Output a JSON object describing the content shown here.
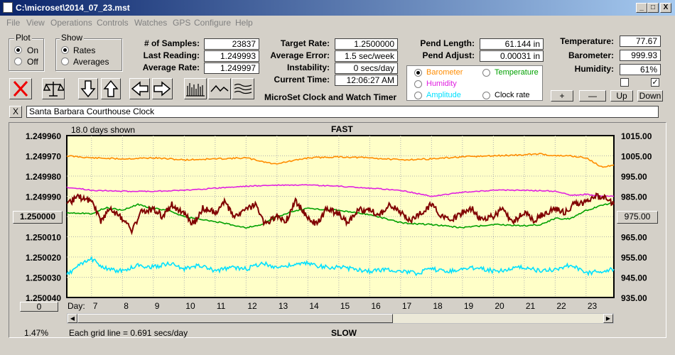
{
  "window": {
    "title": "C:\\microset\\2014_07_23.mst",
    "min_label": "_",
    "max_label": "□",
    "close_label": "X"
  },
  "menu": [
    "File",
    "View",
    "Operations",
    "Controls",
    "Watches",
    "GPS",
    "Configure",
    "Help"
  ],
  "plot": {
    "title": "Plot",
    "on": "On",
    "off": "Off"
  },
  "show": {
    "title": "Show",
    "rates": "Rates",
    "averages": "Averages"
  },
  "stats": {
    "samples_label": "# of Samples:",
    "samples": "23837",
    "last_label": "Last Reading:",
    "last": "1.249993",
    "avg_label": "Average Rate:",
    "avg": "1.249997",
    "target_label": "Target Rate:",
    "target": "1.2500000",
    "avgerr_label": "Average Error:",
    "avgerr": "1.5 sec/week",
    "instab_label": "Instability:",
    "instab": "0 secs/day",
    "time_label": "Current Time:",
    "time": "12:06:27 AM",
    "app_name": "MicroSet Clock and Watch Timer",
    "pend_len_label": "Pend Length:",
    "pend_len": "61.144 in",
    "pend_adj_label": "Pend Adjust:",
    "pend_adj": "0.00031 in",
    "temp_label": "Temperature:",
    "temp": "77.67",
    "baro_label": "Barometer:",
    "baro": "999.93",
    "hum_label": "Humidity:",
    "hum": "61%"
  },
  "sensors": {
    "barometer": "Barometer",
    "temperature": "Temperature",
    "humidity": "Humidity",
    "amplitude": "Amplitude",
    "clock_rate": "Clock rate"
  },
  "adjust": {
    "plus": "+",
    "minus": "—",
    "up": "Up",
    "down": "Down"
  },
  "colors": {
    "barometer": "#ff8c00",
    "temperature": "#00a000",
    "humidity": "#e020e0",
    "amplitude": "#00e0ff",
    "rate": "#800000",
    "chart_bg": "#ffffc8"
  },
  "watch": {
    "close": "X",
    "name": "Santa Barbara Courthouse Clock"
  },
  "chart_data": {
    "type": "line",
    "days_shown": "18.0 days shown",
    "top_label": "FAST",
    "bottom_label": "SLOW",
    "left_ticks": [
      "1.249960",
      "1.249970",
      "1.249980",
      "1.249990",
      "1.250000",
      "1.250010",
      "1.250020",
      "1.250030",
      "1.250040"
    ],
    "right_ticks": [
      "1015.00",
      "1005.00",
      "995.00",
      "985.00",
      "975.00",
      "965.00",
      "955.00",
      "945.00",
      "935.00"
    ],
    "center_left": "1.250000",
    "center_right": "975.00",
    "zero_button": "0",
    "day_label": "Day:",
    "day_ticks": [
      "7",
      "8",
      "9",
      "10",
      "11",
      "12",
      "13",
      "14",
      "15",
      "16",
      "17",
      "18",
      "19",
      "20",
      "21",
      "22",
      "23"
    ],
    "percent": "1.47%",
    "grid_note": "Each grid line = 0.691 secs/day",
    "x_range": [
      6.2,
      23.9
    ],
    "right_range": [
      935,
      1015
    ],
    "series": [
      {
        "key": "barometer",
        "x": [
          6.2,
          7,
          8,
          9,
          10,
          11,
          12,
          12.9,
          13.5,
          14,
          15,
          16,
          17,
          18,
          19,
          20,
          21,
          21.5,
          22,
          22.5,
          23,
          23.5,
          23.9
        ],
        "values": [
          1005,
          1004,
          1003.5,
          1004,
          1003,
          1003.5,
          1004,
          1001,
          1002.5,
          1004,
          1004.5,
          1004,
          1003,
          1003.5,
          1004.5,
          1005,
          1005.5,
          1006,
          1005,
          1005,
          1004,
          999.5,
          1000.5
        ]
      },
      {
        "key": "humidity",
        "x": [
          6.2,
          7,
          8,
          9,
          10,
          11,
          12,
          13,
          14,
          15,
          16,
          17,
          18,
          19,
          20,
          21,
          22,
          22.5,
          23,
          23.5,
          23.9
        ],
        "values": [
          989.5,
          988,
          987.5,
          987.5,
          988,
          989,
          990,
          990.5,
          990.5,
          990,
          989,
          988,
          985,
          987,
          988,
          988,
          987.5,
          985.5,
          986,
          985,
          985
        ]
      },
      {
        "key": "temperature",
        "x": [
          6.2,
          7,
          7.5,
          8,
          8.5,
          9,
          9.5,
          10,
          10.5,
          11,
          11.5,
          12,
          12.5,
          13,
          13.5,
          14,
          15,
          16,
          17,
          18,
          19,
          20,
          21,
          21.5,
          22,
          22.5,
          23,
          23.5,
          23.9
        ],
        "values": [
          977,
          976.5,
          979.5,
          978,
          981,
          979,
          978,
          975,
          973.5,
          972.5,
          971,
          969.5,
          971,
          975,
          977.5,
          979,
          978,
          976,
          972,
          971,
          969.5,
          971,
          970.5,
          971,
          974,
          974,
          978,
          980.5,
          982
        ]
      },
      {
        "key": "amplitude",
        "x": [
          6.2,
          6.5,
          7,
          7.5,
          8,
          8.5,
          9,
          9.5,
          10,
          10.5,
          11,
          11.5,
          12,
          12.5,
          13,
          13.5,
          14,
          14.5,
          15,
          15.5,
          16,
          16.5,
          17,
          17.5,
          18,
          18.5,
          19,
          19.5,
          20,
          20.5,
          21,
          21.5,
          22,
          22.5,
          23,
          23.5,
          23.9
        ],
        "values": [
          946,
          950,
          954,
          949,
          948,
          951,
          950,
          952,
          949,
          951,
          948,
          950,
          949,
          952,
          950,
          951,
          952,
          950,
          950,
          949,
          948,
          949,
          948,
          947,
          949,
          948,
          949,
          950,
          948,
          949,
          950,
          948,
          949,
          951,
          947,
          948,
          949
        ]
      },
      {
        "key": "rate",
        "x": [
          6.2,
          6.5,
          7,
          7.3,
          7.6,
          8,
          8.3,
          8.6,
          9,
          9.3,
          9.6,
          10,
          10.3,
          10.6,
          11,
          11.3,
          11.6,
          12,
          12.3,
          12.6,
          13,
          13.3,
          13.6,
          14,
          14.3,
          14.6,
          15,
          15.3,
          15.6,
          16,
          16.3,
          16.6,
          17,
          17.3,
          17.6,
          18,
          18.3,
          18.6,
          19,
          19.3,
          19.6,
          20,
          20.3,
          20.6,
          21,
          21.3,
          21.6,
          22,
          22.3,
          22.6,
          23,
          23.3,
          23.6,
          23.9
        ],
        "values": [
          1.249995,
          1.24999,
          1.249992,
          1.250002,
          1.249996,
          1.250001,
          1.250007,
          1.249998,
          1.249996,
          1.25,
          1.249994,
          1.249999,
          1.250004,
          1.249996,
          1.249998,
          1.249993,
          1.25,
          1.249997,
          1.249994,
          1.250004,
          1.25,
          1.250002,
          1.249992,
          1.250001,
          1.250004,
          1.249996,
          1.249999,
          1.250003,
          1.249997,
          1.249996,
          1.25,
          1.249994,
          1.249998,
          1.250002,
          1.249999,
          1.249994,
          1.249999,
          1.250002,
          1.249998,
          1.249996,
          1.250002,
          1.25,
          1.249996,
          1.250003,
          1.249998,
          1.250002,
          1.249999,
          1.249996,
          1.249998,
          1.249994,
          1.249993,
          1.24999,
          1.249991,
          1.249994
        ]
      }
    ]
  }
}
